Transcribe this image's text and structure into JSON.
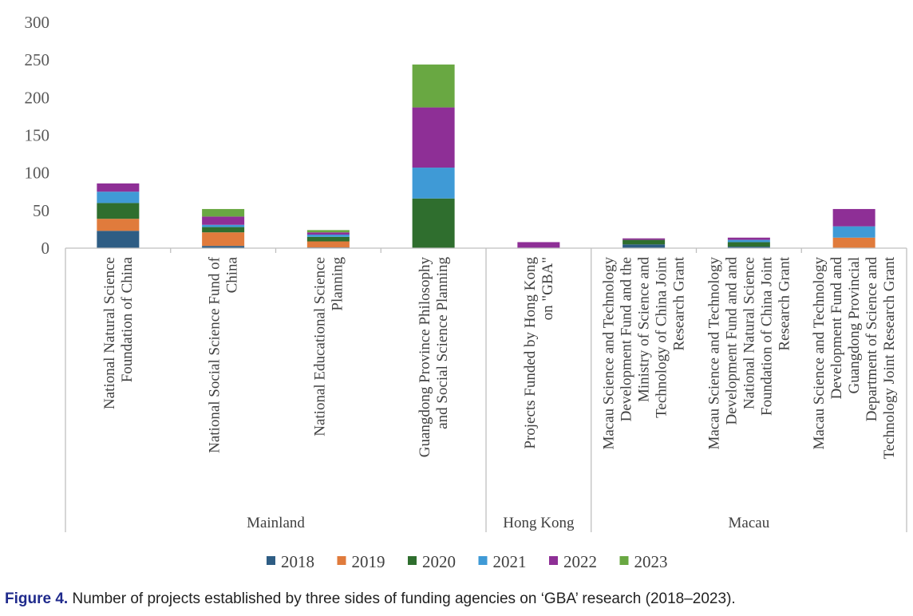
{
  "chart_data": {
    "type": "bar",
    "stacked": true,
    "title": "",
    "xlabel": "",
    "ylabel": "",
    "ylim": [
      0,
      300
    ],
    "yticks": [
      0,
      50,
      100,
      150,
      200,
      250,
      300
    ],
    "grid": false,
    "legend_position": "bottom",
    "categories": [
      "National Natural Science Foundation of China",
      "National Social Science Fund of China",
      "National Educational Science Planning",
      "Guangdong Province Philosophy and Social Science Planning",
      "Projects Funded by Hong Kong on \"GBA\"",
      "Macau Science and Technology Development Fund and the Ministry of Science and Technology of China Joint Research Grant",
      "Macau Science and Technology Development Fund and and National Natural Science Foundation of China Joint Research Grant",
      "Macau Science and Technology Development Fund and Guangdong Provincial Department of Science and Technology Joint Research Grant"
    ],
    "category_label_lines": [
      [
        "National Natural Science",
        "Foundation of China"
      ],
      [
        "National Social Science Fund of",
        "China"
      ],
      [
        "National Educational Science",
        "Planning"
      ],
      [
        "Guangdong Province Philosophy",
        "and Social Science Planning"
      ],
      [
        "Projects Funded by Hong Kong",
        "on \"GBA\""
      ],
      [
        "Macau Science and Technology",
        "Development Fund and the",
        "Ministry of Science and",
        "Technology of China Joint",
        "Research Grant"
      ],
      [
        "Macau Science and Technology",
        "Development Fund and and",
        "National Natural Science",
        "Foundation of China Joint",
        "Research Grant"
      ],
      [
        "Macau Science and Technology",
        "Development Fund and",
        "Guangdong Provincial",
        "Department of Science and",
        "Technology Joint Research Grant"
      ]
    ],
    "groups": [
      {
        "name": "Mainland",
        "categories": [
          0,
          1,
          2,
          3
        ]
      },
      {
        "name": "Hong Kong",
        "categories": [
          4
        ]
      },
      {
        "name": "Macau",
        "categories": [
          5,
          6,
          7
        ]
      }
    ],
    "series": [
      {
        "name": "2018",
        "color": "#2e5d84",
        "values": [
          23,
          3,
          1,
          0,
          0,
          5,
          2,
          0
        ]
      },
      {
        "name": "2019",
        "color": "#e07b3c",
        "values": [
          16,
          18,
          8,
          0,
          0,
          0,
          0,
          14
        ]
      },
      {
        "name": "2020",
        "color": "#2f6e2e",
        "values": [
          21,
          7,
          6,
          66,
          0,
          6,
          6,
          0
        ]
      },
      {
        "name": "2021",
        "color": "#3f9ad6",
        "values": [
          15,
          3,
          3,
          41,
          0,
          0,
          3,
          15
        ]
      },
      {
        "name": "2022",
        "color": "#8e2f96",
        "values": [
          11,
          11,
          3,
          80,
          8,
          2,
          3,
          23
        ]
      },
      {
        "name": "2023",
        "color": "#69a842",
        "values": [
          0,
          10,
          3,
          57,
          0,
          0,
          0,
          0
        ]
      }
    ]
  },
  "caption": {
    "label": "Figure 4.",
    "text": " Number of projects established by three sides of funding agencies on ‘GBA’ research (2018–2023)."
  }
}
